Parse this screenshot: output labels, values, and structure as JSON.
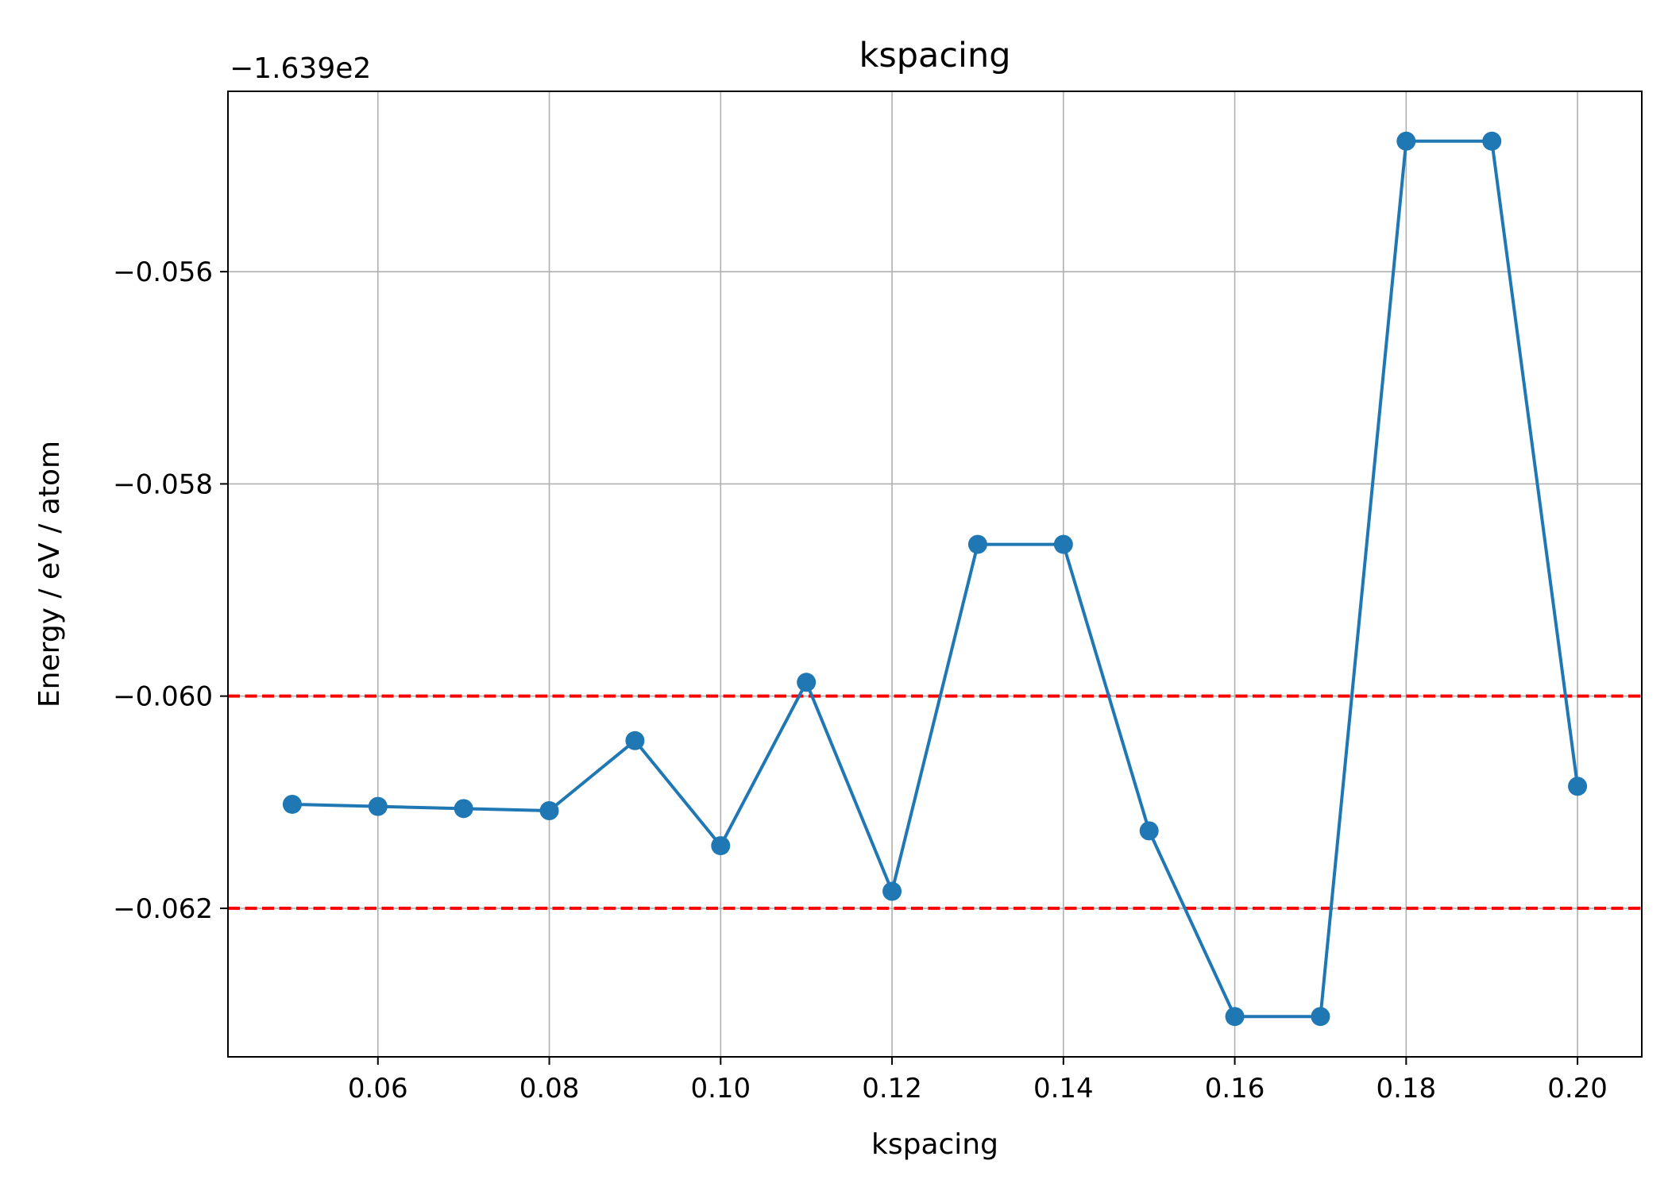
{
  "chart_data": {
    "type": "line",
    "title": "kspacing",
    "xlabel": "kspacing",
    "ylabel": "Energy / eV / atom",
    "y_offset_label": "−1.639e2",
    "x": [
      0.05,
      0.06,
      0.07,
      0.08,
      0.09,
      0.1,
      0.11,
      0.12,
      0.13,
      0.14,
      0.15,
      0.16,
      0.17,
      0.18,
      0.19,
      0.2
    ],
    "series": [
      {
        "values": [
          -0.06102,
          -0.06104,
          -0.06106,
          -0.06108,
          -0.06042,
          -0.06141,
          -0.05987,
          -0.06184,
          -0.05857,
          -0.05857,
          -0.06127,
          -0.06302,
          -0.06302,
          -0.05477,
          -0.05477,
          -0.06085
        ],
        "color": "#1f77b4",
        "marker": "circle"
      }
    ],
    "reference_lines": [
      {
        "y": -0.06,
        "color": "#ff0000",
        "style": "dashed"
      },
      {
        "y": -0.062,
        "color": "#ff0000",
        "style": "dashed"
      }
    ],
    "xlim": [
      0.0425,
      0.2075
    ],
    "ylim": [
      -0.0634,
      -0.0543
    ],
    "x_ticks": [
      0.06,
      0.08,
      0.1,
      0.12,
      0.14,
      0.16,
      0.18,
      0.2
    ],
    "x_tick_labels": [
      "0.06",
      "0.08",
      "0.10",
      "0.12",
      "0.14",
      "0.16",
      "0.18",
      "0.20"
    ],
    "x_grid_ticks": [
      0.06,
      0.08,
      0.1,
      0.12,
      0.14,
      0.16,
      0.18,
      0.2
    ],
    "y_ticks": [
      -0.056,
      -0.058,
      -0.06,
      -0.062
    ],
    "y_tick_labels": [
      "−0.056",
      "−0.058",
      "−0.060",
      "−0.062"
    ],
    "grid": true
  }
}
